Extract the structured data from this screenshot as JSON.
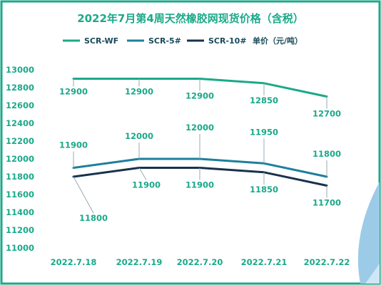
{
  "chart_data": {
    "type": "line",
    "title": "2022年7月第4周天然橡胶网现货价格（含税）",
    "unit_label": "单价（元/吨）",
    "categories": [
      "2022.7.18",
      "2022.7.19",
      "2022.7.20",
      "2022.7.21",
      "2022.7.22"
    ],
    "series": [
      {
        "name": "SCR-WF",
        "color": "#1aa98a",
        "values": [
          12900,
          12900,
          12900,
          12850,
          12700
        ]
      },
      {
        "name": "SCR-5#",
        "color": "#1d7f9c",
        "values": [
          11900,
          12000,
          12000,
          11950,
          11800
        ]
      },
      {
        "name": "SCR-10#",
        "color": "#17324d",
        "values": [
          11800,
          11900,
          11900,
          11850,
          11700
        ]
      }
    ],
    "ylim": [
      11000,
      13000
    ],
    "yticks": [
      11000,
      11200,
      11400,
      11600,
      11800,
      12000,
      12200,
      12400,
      12600,
      12800,
      13000
    ],
    "grid": false,
    "legend_position": "top-center"
  },
  "style": {
    "frame_color": "#1aa98a",
    "axis_text_color": "#1aa98a",
    "accent_blue": "#8fc7ea"
  }
}
